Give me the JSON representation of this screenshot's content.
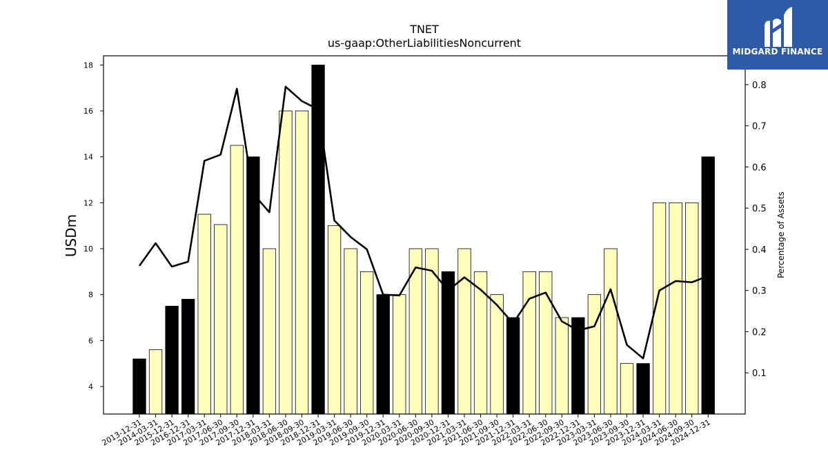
{
  "chart_data": {
    "type": "bar",
    "title": "TNET",
    "subtitle": "us-gaap:OtherLiabilitiesNoncurrent",
    "ylabel": "USDm",
    "y2label": "Percentage of Assets",
    "ylim": [
      2.8,
      18.4
    ],
    "y2lim": [
      0.0,
      0.87
    ],
    "yticks": [
      4,
      6,
      8,
      10,
      12,
      14,
      16,
      18
    ],
    "y2ticks": [
      0.1,
      0.2,
      0.3,
      0.4,
      0.5,
      0.6,
      0.7,
      0.8
    ],
    "categories": [
      "2013-12-31",
      "2014-03-31",
      "2015-12-31",
      "2016-12-31",
      "2017-03-31",
      "2017-06-30",
      "2017-09-30",
      "2017-12-31",
      "2018-03-31",
      "2018-06-30",
      "2018-09-30",
      "2018-12-31",
      "2019-03-31",
      "2019-06-30",
      "2019-09-30",
      "2019-12-31",
      "2020-03-31",
      "2020-06-30",
      "2020-09-30",
      "2020-12-31",
      "2021-03-31",
      "2021-06-30",
      "2021-09-30",
      "2021-12-31",
      "2022-03-31",
      "2022-06-30",
      "2022-09-30",
      "2022-12-31",
      "2023-03-31",
      "2023-06-30",
      "2023-09-30",
      "2023-12-31",
      "2024-03-31",
      "2024-06-30",
      "2024-09-30",
      "2024-12-31"
    ],
    "series": [
      {
        "kind": "bar",
        "values": [
          5.2,
          5.6,
          7.5,
          7.8,
          11.5,
          11.05,
          14.5,
          14.0,
          10.0,
          16.0,
          16.0,
          18.0,
          11.0,
          10.0,
          9.0,
          8.0,
          8.0,
          10.0,
          10.0,
          9.0,
          10.0,
          9.0,
          8.0,
          7.0,
          9.0,
          9.0,
          7.0,
          7.0,
          8.0,
          10.0,
          5.0,
          5.0,
          12.0,
          12.0,
          12.0,
          14.0
        ],
        "highlight": [
          true,
          false,
          true,
          true,
          false,
          false,
          false,
          true,
          false,
          false,
          false,
          true,
          false,
          false,
          false,
          true,
          false,
          false,
          false,
          true,
          false,
          false,
          false,
          true,
          false,
          false,
          false,
          true,
          false,
          false,
          false,
          true,
          false,
          false,
          false,
          true
        ]
      },
      {
        "kind": "line",
        "axis": "right",
        "values": [
          0.36,
          0.415,
          0.358,
          0.37,
          0.615,
          0.63,
          0.79,
          0.535,
          0.49,
          0.795,
          0.76,
          0.74,
          0.47,
          0.43,
          0.4,
          0.29,
          0.288,
          0.356,
          0.348,
          0.3,
          0.332,
          0.302,
          0.265,
          0.22,
          0.28,
          0.295,
          0.225,
          0.203,
          0.213,
          0.303,
          0.168,
          0.135,
          0.3,
          0.323,
          0.32,
          0.335
        ]
      }
    ],
    "colors": {
      "bar_fill": "#ffffbb",
      "bar_highlight": "#000000",
      "bar_edge": "#000000",
      "line": "#000000"
    }
  },
  "logo": {
    "text": "MIDGARD FINANCE",
    "background": "#2f5aa8"
  }
}
